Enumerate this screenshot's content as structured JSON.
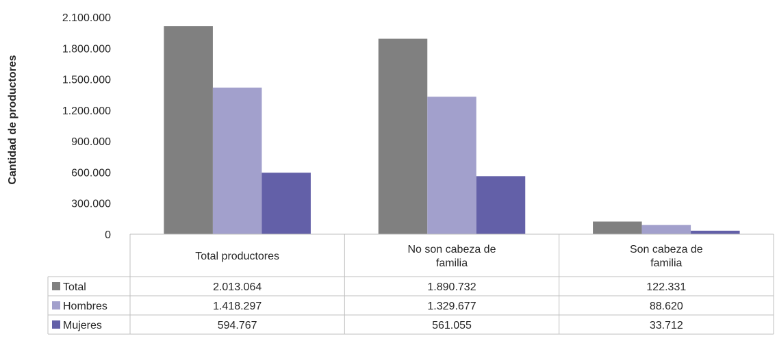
{
  "chart_data": {
    "type": "bar",
    "title": "",
    "xlabel": "",
    "ylabel": "Cantidad de productores",
    "ylim": [
      0,
      2100000
    ],
    "yticks": [
      0,
      300000,
      600000,
      900000,
      1200000,
      1500000,
      1800000,
      2100000
    ],
    "ytick_labels": [
      "0",
      "300.000",
      "600.000",
      "900.000",
      "1.200.000",
      "1.500.000",
      "1.800.000",
      "2.100.000"
    ],
    "categories": [
      [
        "Total productores"
      ],
      [
        "No son cabeza de",
        "familia"
      ],
      [
        "Son cabeza de",
        "familia"
      ]
    ],
    "series": [
      {
        "name": "Total",
        "color": "#808080",
        "values": [
          2013064,
          1890732,
          122331
        ],
        "labels": [
          "2.013.064",
          "1.890.732",
          "122.331"
        ]
      },
      {
        "name": "Hombres",
        "color": "#a2a0cc",
        "values": [
          1418297,
          1329677,
          88620
        ],
        "labels": [
          "1.418.297",
          "1.329.677",
          "88.620"
        ]
      },
      {
        "name": "Mujeres",
        "color": "#6360a8",
        "values": [
          594767,
          561055,
          33712
        ],
        "labels": [
          "594.767",
          "561.055",
          "33.712"
        ]
      }
    ],
    "grid": false,
    "legend": "data-table",
    "data_table": true
  }
}
